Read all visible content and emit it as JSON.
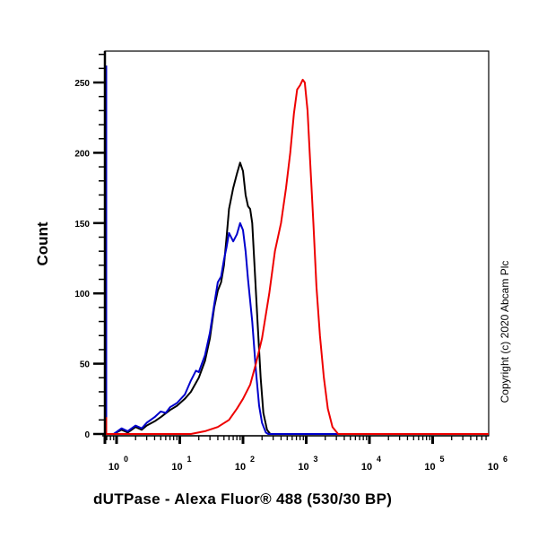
{
  "chart_data": {
    "type": "line",
    "title": "",
    "xlabel": "dUTPase - Alexa Fluor® 488 (530/30 BP)",
    "ylabel": "Count",
    "xscale": "log",
    "xlim": [
      0.5,
      1000000
    ],
    "ylim": [
      0,
      275
    ],
    "grid": false,
    "legend": null,
    "x_ticks": [
      {
        "base": "10",
        "exp": "0",
        "value": 1
      },
      {
        "base": "10",
        "exp": "1",
        "value": 10
      },
      {
        "base": "10",
        "exp": "2",
        "value": 100
      },
      {
        "base": "10",
        "exp": "3",
        "value": 1000
      },
      {
        "base": "10",
        "exp": "4",
        "value": 10000
      },
      {
        "base": "10",
        "exp": "5",
        "value": 100000
      },
      {
        "base": "10",
        "exp": "6",
        "value": 1000000
      }
    ],
    "y_ticks": [
      0,
      50,
      100,
      150,
      200,
      250
    ],
    "annotations": [
      "Copyright (c) 2020 Abcam Plc"
    ],
    "series": [
      {
        "name": "black",
        "color": "#000000",
        "points": [
          [
            0.5,
            262
          ],
          [
            0.52,
            0
          ],
          [
            0.9,
            0
          ],
          [
            1.2,
            3
          ],
          [
            1.5,
            1
          ],
          [
            2,
            5
          ],
          [
            2.5,
            3
          ],
          [
            3,
            6
          ],
          [
            4,
            9
          ],
          [
            5,
            12
          ],
          [
            7,
            17
          ],
          [
            9,
            20
          ],
          [
            12,
            25
          ],
          [
            15,
            30
          ],
          [
            20,
            40
          ],
          [
            25,
            52
          ],
          [
            30,
            68
          ],
          [
            35,
            90
          ],
          [
            40,
            102
          ],
          [
            45,
            108
          ],
          [
            50,
            120
          ],
          [
            55,
            140
          ],
          [
            60,
            160
          ],
          [
            70,
            175
          ],
          [
            80,
            185
          ],
          [
            90,
            193
          ],
          [
            100,
            187
          ],
          [
            110,
            170
          ],
          [
            120,
            162
          ],
          [
            130,
            160
          ],
          [
            140,
            150
          ],
          [
            150,
            125
          ],
          [
            170,
            80
          ],
          [
            190,
            40
          ],
          [
            210,
            15
          ],
          [
            240,
            3
          ],
          [
            270,
            0
          ],
          [
            1000000,
            0
          ]
        ]
      },
      {
        "name": "blue",
        "color": "#0000cc",
        "points": [
          [
            0.5,
            262
          ],
          [
            0.52,
            0
          ],
          [
            0.9,
            0
          ],
          [
            1.2,
            4
          ],
          [
            1.5,
            2
          ],
          [
            2,
            6
          ],
          [
            2.5,
            4
          ],
          [
            3,
            8
          ],
          [
            4,
            12
          ],
          [
            5,
            16
          ],
          [
            6,
            15
          ],
          [
            7,
            19
          ],
          [
            9,
            22
          ],
          [
            12,
            28
          ],
          [
            15,
            38
          ],
          [
            18,
            45
          ],
          [
            20,
            44
          ],
          [
            25,
            56
          ],
          [
            30,
            72
          ],
          [
            35,
            92
          ],
          [
            40,
            108
          ],
          [
            45,
            112
          ],
          [
            50,
            124
          ],
          [
            55,
            133
          ],
          [
            60,
            143
          ],
          [
            70,
            137
          ],
          [
            80,
            142
          ],
          [
            90,
            150
          ],
          [
            100,
            145
          ],
          [
            110,
            130
          ],
          [
            120,
            110
          ],
          [
            140,
            80
          ],
          [
            160,
            45
          ],
          [
            180,
            20
          ],
          [
            200,
            8
          ],
          [
            230,
            1
          ],
          [
            250,
            0
          ],
          [
            1000000,
            0
          ]
        ]
      },
      {
        "name": "red",
        "color": "#ee0000",
        "points": [
          [
            0.5,
            12
          ],
          [
            0.6,
            0
          ],
          [
            15,
            0
          ],
          [
            25,
            2
          ],
          [
            40,
            5
          ],
          [
            60,
            10
          ],
          [
            80,
            18
          ],
          [
            100,
            25
          ],
          [
            130,
            35
          ],
          [
            160,
            50
          ],
          [
            200,
            68
          ],
          [
            260,
            100
          ],
          [
            320,
            130
          ],
          [
            400,
            150
          ],
          [
            480,
            175
          ],
          [
            560,
            200
          ],
          [
            640,
            228
          ],
          [
            720,
            245
          ],
          [
            800,
            248
          ],
          [
            880,
            252
          ],
          [
            950,
            250
          ],
          [
            1050,
            230
          ],
          [
            1150,
            195
          ],
          [
            1300,
            150
          ],
          [
            1450,
            105
          ],
          [
            1650,
            70
          ],
          [
            1900,
            40
          ],
          [
            2200,
            18
          ],
          [
            2600,
            5
          ],
          [
            3200,
            0
          ],
          [
            1000000,
            0
          ]
        ]
      }
    ]
  },
  "axes": {
    "xlabel": "dUTPase - Alexa Fluor® 488 (530/30 BP)",
    "ylabel": "Count"
  },
  "copyright": "Copyright (c) 2020 Abcam Plc"
}
